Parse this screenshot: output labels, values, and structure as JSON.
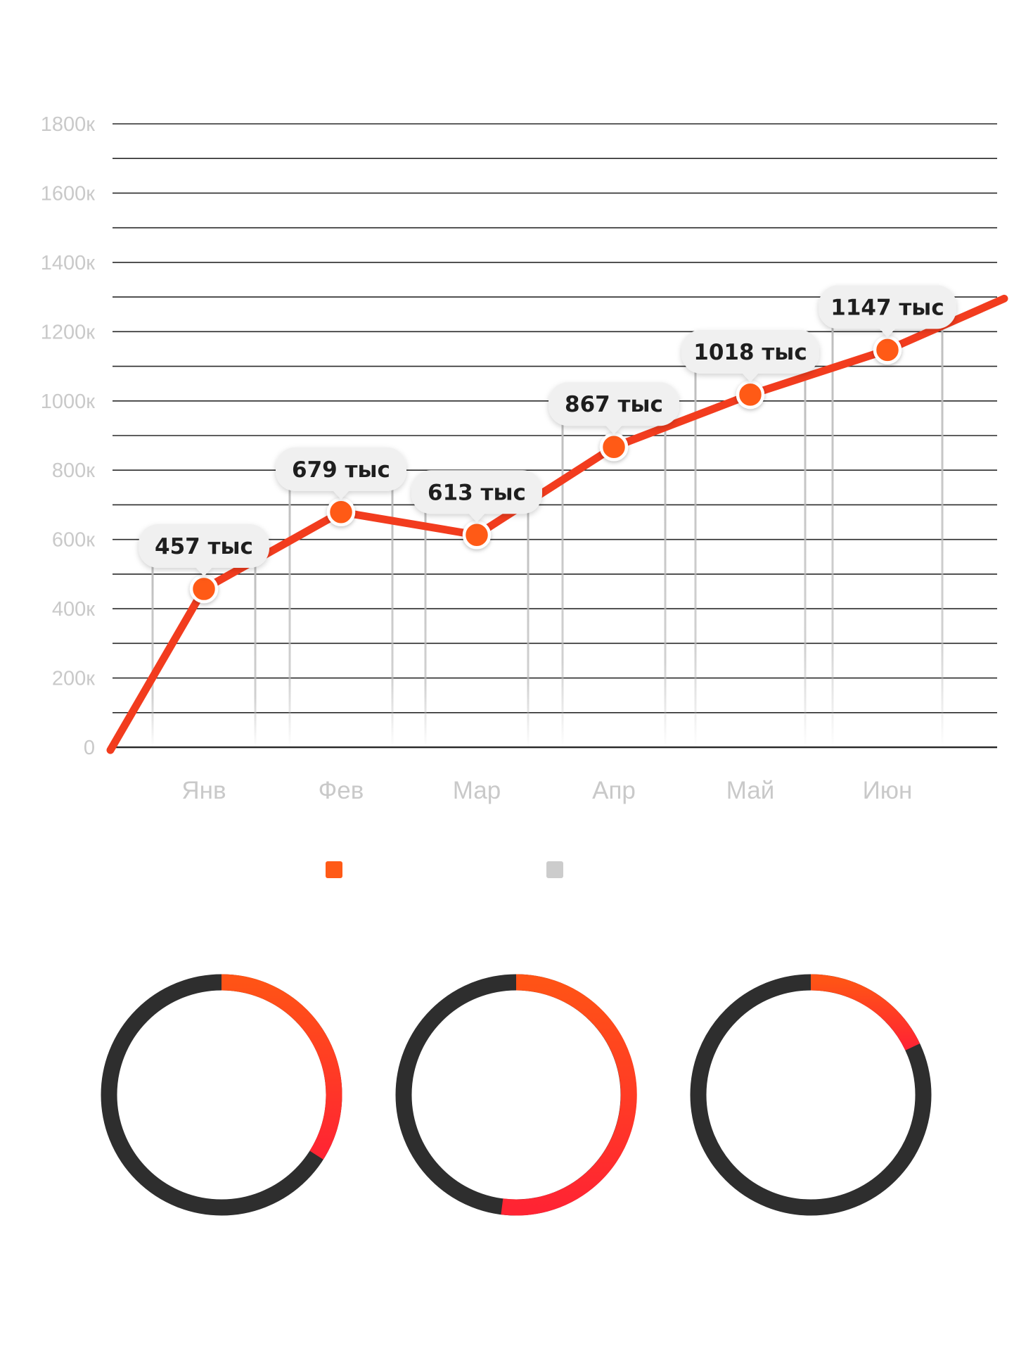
{
  "colors": {
    "line": "#f23c1e",
    "marker": "#ff5a17",
    "marker_ring": "#ffffff",
    "grid": "#2a2a2a",
    "tick_text": "#c9c9c9",
    "bubble": "#f0f0f0",
    "bubble_text": "#1e1e1e",
    "legend_orange": "#ff5a17",
    "legend_gray": "#cccccc",
    "donut_track": "#2e2e2e",
    "donut_fill_start": "#ff5316",
    "donut_fill_end": "#ff2433"
  },
  "chart_data": [
    {
      "type": "line",
      "categories": [
        "Янв",
        "Фев",
        "Мар",
        "Апр",
        "Май",
        "Июн"
      ],
      "values": [
        457,
        679,
        613,
        867,
        1018,
        1147
      ],
      "data_labels": [
        "457 тыс",
        "679 тыс",
        "613 тыс",
        "867 тыс",
        "1018 тыс",
        "1147 тыс"
      ],
      "y_ticks": [
        "0",
        "200к",
        "400к",
        "600к",
        "800к",
        "1000к",
        "1200к",
        "1400к",
        "1600к",
        "1800к"
      ],
      "ylim": [
        0,
        1800
      ],
      "grid": true,
      "line_starts_at_zero": true,
      "line_continues_past_last_point": true,
      "legend": {
        "placement": "bottom",
        "entries": [
          {
            "color": "#ff5a17"
          },
          {
            "color": "#cccccc"
          }
        ]
      }
    },
    {
      "type": "pie",
      "style": "donut",
      "donuts": [
        {
          "fraction": 0.34
        },
        {
          "fraction": 0.52
        },
        {
          "fraction": 0.18
        }
      ]
    }
  ]
}
